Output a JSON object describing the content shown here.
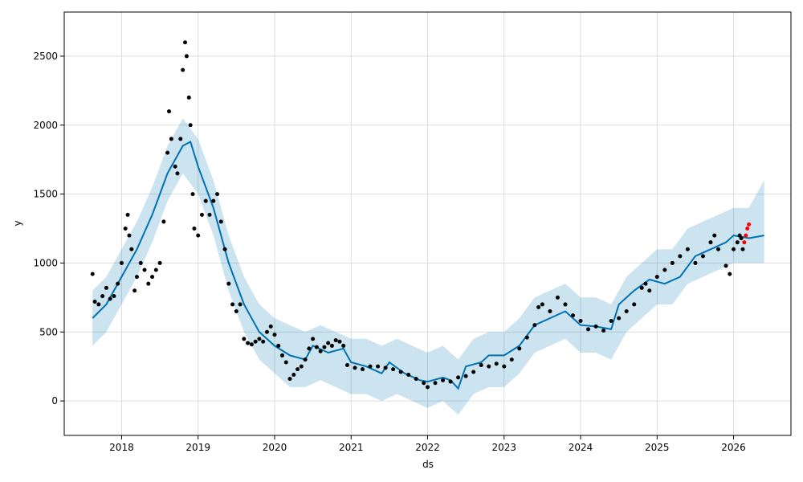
{
  "chart_data": {
    "type": "scatter",
    "xlabel": "ds",
    "ylabel": "y",
    "xlim": [
      2017.25,
      2026.75
    ],
    "ylim": [
      -250,
      2820
    ],
    "grid": true,
    "x_ticks": [
      2018,
      2019,
      2020,
      2021,
      2022,
      2023,
      2024,
      2025,
      2026
    ],
    "x_tick_labels": [
      "2018",
      "2019",
      "2020",
      "2021",
      "2022",
      "2023",
      "2024",
      "2025",
      "2026"
    ],
    "y_ticks": [
      0,
      500,
      1000,
      1500,
      2000,
      2500
    ],
    "y_tick_labels": [
      "0",
      "500",
      "1000",
      "1500",
      "2000",
      "2500"
    ],
    "colors": {
      "observed": "#000000",
      "forecast": "#0072B2",
      "interval": "#0072B2",
      "recent": "#ff0000",
      "grid": "#dddddd"
    },
    "series": [
      {
        "role": "observed",
        "points": [
          [
            2017.62,
            920
          ],
          [
            2017.65,
            720
          ],
          [
            2017.7,
            700
          ],
          [
            2017.75,
            760
          ],
          [
            2017.8,
            820
          ],
          [
            2017.85,
            740
          ],
          [
            2017.9,
            760
          ],
          [
            2017.95,
            850
          ],
          [
            2018.0,
            1000
          ],
          [
            2018.05,
            1250
          ],
          [
            2018.08,
            1350
          ],
          [
            2018.1,
            1200
          ],
          [
            2018.13,
            1100
          ],
          [
            2018.17,
            800
          ],
          [
            2018.2,
            900
          ],
          [
            2018.25,
            1000
          ],
          [
            2018.3,
            950
          ],
          [
            2018.35,
            850
          ],
          [
            2018.4,
            900
          ],
          [
            2018.45,
            950
          ],
          [
            2018.5,
            1000
          ],
          [
            2018.55,
            1300
          ],
          [
            2018.6,
            1800
          ],
          [
            2018.62,
            2100
          ],
          [
            2018.65,
            1900
          ],
          [
            2018.7,
            1700
          ],
          [
            2018.73,
            1650
          ],
          [
            2018.77,
            1900
          ],
          [
            2018.8,
            2400
          ],
          [
            2018.83,
            2600
          ],
          [
            2018.85,
            2500
          ],
          [
            2018.88,
            2200
          ],
          [
            2018.9,
            2000
          ],
          [
            2018.93,
            1500
          ],
          [
            2018.95,
            1250
          ],
          [
            2019.0,
            1200
          ],
          [
            2019.05,
            1350
          ],
          [
            2019.1,
            1450
          ],
          [
            2019.15,
            1350
          ],
          [
            2019.2,
            1450
          ],
          [
            2019.25,
            1500
          ],
          [
            2019.3,
            1300
          ],
          [
            2019.35,
            1100
          ],
          [
            2019.4,
            850
          ],
          [
            2019.45,
            700
          ],
          [
            2019.5,
            650
          ],
          [
            2019.55,
            700
          ],
          [
            2019.6,
            450
          ],
          [
            2019.65,
            420
          ],
          [
            2019.7,
            410
          ],
          [
            2019.75,
            430
          ],
          [
            2019.8,
            450
          ],
          [
            2019.85,
            430
          ],
          [
            2019.9,
            500
          ],
          [
            2019.95,
            540
          ],
          [
            2020.0,
            480
          ],
          [
            2020.05,
            400
          ],
          [
            2020.1,
            330
          ],
          [
            2020.15,
            280
          ],
          [
            2020.2,
            160
          ],
          [
            2020.25,
            190
          ],
          [
            2020.3,
            230
          ],
          [
            2020.35,
            250
          ],
          [
            2020.4,
            300
          ],
          [
            2020.45,
            380
          ],
          [
            2020.5,
            450
          ],
          [
            2020.55,
            390
          ],
          [
            2020.6,
            360
          ],
          [
            2020.65,
            390
          ],
          [
            2020.7,
            420
          ],
          [
            2020.75,
            400
          ],
          [
            2020.8,
            440
          ],
          [
            2020.85,
            430
          ],
          [
            2020.9,
            400
          ],
          [
            2020.95,
            260
          ],
          [
            2021.05,
            240
          ],
          [
            2021.15,
            230
          ],
          [
            2021.25,
            250
          ],
          [
            2021.35,
            250
          ],
          [
            2021.45,
            240
          ],
          [
            2021.55,
            230
          ],
          [
            2021.65,
            210
          ],
          [
            2021.75,
            190
          ],
          [
            2021.85,
            160
          ],
          [
            2021.95,
            130
          ],
          [
            2022.0,
            100
          ],
          [
            2022.1,
            130
          ],
          [
            2022.2,
            150
          ],
          [
            2022.3,
            140
          ],
          [
            2022.4,
            170
          ],
          [
            2022.5,
            180
          ],
          [
            2022.6,
            210
          ],
          [
            2022.7,
            260
          ],
          [
            2022.8,
            250
          ],
          [
            2022.9,
            270
          ],
          [
            2023.0,
            250
          ],
          [
            2023.1,
            300
          ],
          [
            2023.2,
            380
          ],
          [
            2023.3,
            460
          ],
          [
            2023.4,
            550
          ],
          [
            2023.45,
            680
          ],
          [
            2023.5,
            700
          ],
          [
            2023.6,
            650
          ],
          [
            2023.7,
            750
          ],
          [
            2023.8,
            700
          ],
          [
            2023.9,
            620
          ],
          [
            2024.0,
            580
          ],
          [
            2024.1,
            520
          ],
          [
            2024.2,
            540
          ],
          [
            2024.3,
            510
          ],
          [
            2024.4,
            580
          ],
          [
            2024.5,
            600
          ],
          [
            2024.6,
            650
          ],
          [
            2024.7,
            700
          ],
          [
            2024.8,
            820
          ],
          [
            2024.85,
            850
          ],
          [
            2024.9,
            800
          ],
          [
            2025.0,
            900
          ],
          [
            2025.1,
            950
          ],
          [
            2025.2,
            1000
          ],
          [
            2025.3,
            1050
          ],
          [
            2025.4,
            1100
          ],
          [
            2025.5,
            1000
          ],
          [
            2025.6,
            1050
          ],
          [
            2025.7,
            1150
          ],
          [
            2025.75,
            1200
          ],
          [
            2025.8,
            1100
          ],
          [
            2025.9,
            980
          ],
          [
            2025.95,
            920
          ],
          [
            2026.0,
            1100
          ],
          [
            2026.05,
            1150
          ],
          [
            2026.08,
            1200
          ],
          [
            2026.1,
            1180
          ],
          [
            2026.12,
            1100
          ]
        ]
      },
      {
        "role": "recent",
        "points": [
          [
            2026.14,
            1150
          ],
          [
            2026.16,
            1200
          ],
          [
            2026.18,
            1250
          ],
          [
            2026.2,
            1280
          ]
        ]
      },
      {
        "role": "forecast",
        "points": [
          [
            2017.62,
            600
          ],
          [
            2017.8,
            700
          ],
          [
            2018.0,
            900
          ],
          [
            2018.2,
            1100
          ],
          [
            2018.4,
            1350
          ],
          [
            2018.6,
            1650
          ],
          [
            2018.8,
            1850
          ],
          [
            2018.9,
            1880
          ],
          [
            2019.0,
            1700
          ],
          [
            2019.2,
            1400
          ],
          [
            2019.4,
            1000
          ],
          [
            2019.6,
            700
          ],
          [
            2019.8,
            500
          ],
          [
            2020.0,
            400
          ],
          [
            2020.2,
            330
          ],
          [
            2020.4,
            300
          ],
          [
            2020.5,
            400
          ],
          [
            2020.7,
            350
          ],
          [
            2020.9,
            380
          ],
          [
            2021.0,
            280
          ],
          [
            2021.2,
            250
          ],
          [
            2021.4,
            200
          ],
          [
            2021.5,
            280
          ],
          [
            2021.7,
            200
          ],
          [
            2021.9,
            150
          ],
          [
            2022.0,
            140
          ],
          [
            2022.2,
            170
          ],
          [
            2022.3,
            150
          ],
          [
            2022.4,
            90
          ],
          [
            2022.5,
            250
          ],
          [
            2022.7,
            280
          ],
          [
            2022.8,
            330
          ],
          [
            2023.0,
            330
          ],
          [
            2023.2,
            400
          ],
          [
            2023.4,
            550
          ],
          [
            2023.6,
            600
          ],
          [
            2023.8,
            650
          ],
          [
            2024.0,
            550
          ],
          [
            2024.2,
            540
          ],
          [
            2024.4,
            520
          ],
          [
            2024.5,
            700
          ],
          [
            2024.7,
            800
          ],
          [
            2024.9,
            880
          ],
          [
            2025.1,
            850
          ],
          [
            2025.3,
            900
          ],
          [
            2025.5,
            1050
          ],
          [
            2025.7,
            1100
          ],
          [
            2025.9,
            1150
          ],
          [
            2026.0,
            1200
          ],
          [
            2026.2,
            1180
          ],
          [
            2026.4,
            1200
          ]
        ]
      }
    ],
    "interval": {
      "x": [
        2017.62,
        2017.8,
        2018.0,
        2018.2,
        2018.4,
        2018.6,
        2018.8,
        2019.0,
        2019.2,
        2019.4,
        2019.6,
        2019.8,
        2020.0,
        2020.2,
        2020.4,
        2020.6,
        2020.8,
        2021.0,
        2021.2,
        2021.4,
        2021.6,
        2021.8,
        2022.0,
        2022.2,
        2022.4,
        2022.6,
        2022.8,
        2023.0,
        2023.2,
        2023.4,
        2023.6,
        2023.8,
        2024.0,
        2024.2,
        2024.4,
        2024.6,
        2024.8,
        2025.0,
        2025.2,
        2025.4,
        2025.6,
        2025.8,
        2026.0,
        2026.2,
        2026.4
      ],
      "upper": [
        800,
        900,
        1100,
        1300,
        1550,
        1850,
        2050,
        1900,
        1600,
        1200,
        900,
        700,
        600,
        550,
        500,
        550,
        500,
        450,
        450,
        400,
        450,
        400,
        350,
        400,
        300,
        450,
        500,
        500,
        600,
        750,
        800,
        850,
        750,
        750,
        700,
        900,
        1000,
        1100,
        1100,
        1250,
        1300,
        1350,
        1400,
        1400,
        1600
      ],
      "lower": [
        400,
        500,
        700,
        900,
        1150,
        1450,
        1650,
        1500,
        1200,
        800,
        500,
        300,
        200,
        100,
        100,
        150,
        100,
        50,
        50,
        0,
        50,
        0,
        -50,
        0,
        -100,
        50,
        100,
        100,
        200,
        350,
        400,
        450,
        350,
        350,
        300,
        500,
        600,
        700,
        700,
        850,
        900,
        950,
        1000,
        1000,
        1000
      ]
    }
  }
}
